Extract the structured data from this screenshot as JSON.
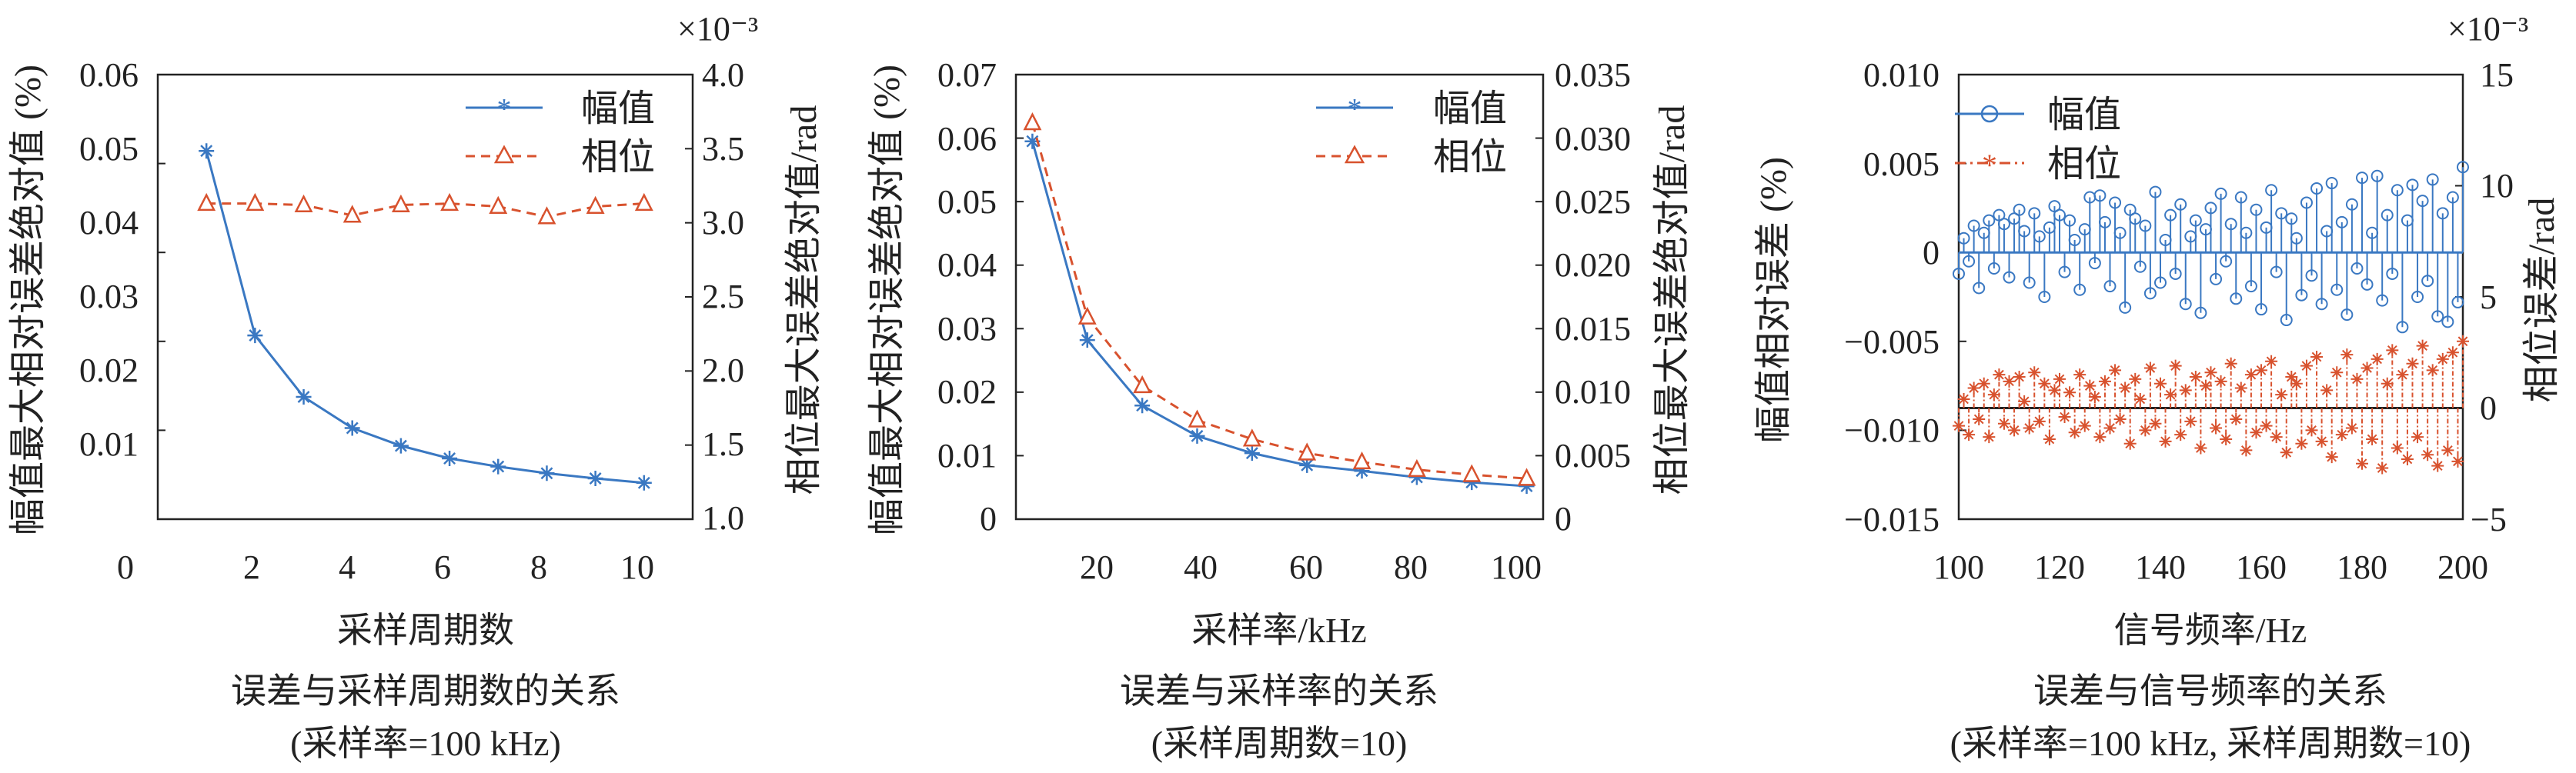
{
  "colors": {
    "blue": "#3a78c2",
    "red": "#d8522e",
    "axis": "#222222"
  },
  "chart_data": [
    {
      "type": "line",
      "xlabel": "采样周期数",
      "caption": "误差与采样周期数的关系",
      "subcaption": "(采样率=100 kHz)",
      "y1label": "幅值最大相对误差绝对值 (%)",
      "y2label": "相位最大误差绝对值/rad",
      "y2_exponent": "×10⁻³",
      "xlim": [
        0,
        11
      ],
      "xticks": [
        "0",
        "2",
        "4",
        "6",
        "8",
        "10"
      ],
      "y1lim": [
        0,
        0.06
      ],
      "y1ticks": [
        "0.06",
        "0.05",
        "0.04",
        "0.03",
        "0.02",
        "0.01"
      ],
      "y2lim": [
        1.0,
        4.0
      ],
      "y2ticks": [
        "4.0",
        "3.5",
        "3.0",
        "2.5",
        "2.0",
        "1.5",
        "1.0"
      ],
      "x": [
        1,
        2,
        3,
        4,
        5,
        6,
        7,
        8,
        9,
        10
      ],
      "series": [
        {
          "name": "幅值",
          "axis": "left",
          "marker": "star",
          "line": "solid",
          "color": "#3a78c2",
          "values": [
            0.0497,
            0.0248,
            0.0165,
            0.0123,
            0.0099,
            0.0082,
            0.0071,
            0.0062,
            0.0055,
            0.0049
          ]
        },
        {
          "name": "相位",
          "axis": "right",
          "marker": "triangle",
          "line": "dashed",
          "color": "#d8522e",
          "values": [
            3.13,
            3.13,
            3.12,
            3.05,
            3.12,
            3.13,
            3.11,
            3.04,
            3.11,
            3.13
          ]
        }
      ],
      "legend": "top-right"
    },
    {
      "type": "line",
      "xlabel": "采样率/kHz",
      "caption": "误差与采样率的关系",
      "subcaption": "(采样周期数=10)",
      "y1label": "幅值最大相对误差绝对值 (%)",
      "y2label": "相位最大误差绝对值/rad",
      "xlim": [
        7,
        103
      ],
      "xticks": [
        "20",
        "40",
        "60",
        "80",
        "100"
      ],
      "y1lim": [
        0,
        0.07
      ],
      "y1ticks": [
        "0.07",
        "0.06",
        "0.05",
        "0.04",
        "0.03",
        "0.02",
        "0.01",
        "0"
      ],
      "y2lim": [
        0,
        0.035
      ],
      "y2ticks": [
        "0.035",
        "0.030",
        "0.025",
        "0.020",
        "0.015",
        "0.010",
        "0.005",
        "0"
      ],
      "x": [
        10,
        20,
        30,
        40,
        50,
        60,
        70,
        80,
        90,
        100
      ],
      "series": [
        {
          "name": "幅值",
          "axis": "left",
          "marker": "star",
          "line": "solid",
          "color": "#3a78c2",
          "values": [
            0.0595,
            0.0282,
            0.0179,
            0.0131,
            0.0104,
            0.0085,
            0.0076,
            0.0066,
            0.0058,
            0.0052
          ]
        },
        {
          "name": "相位",
          "axis": "right",
          "marker": "triangle",
          "line": "dashed",
          "color": "#d8522e",
          "values": [
            0.0312,
            0.0159,
            0.0105,
            0.0078,
            0.0063,
            0.0052,
            0.0045,
            0.0039,
            0.0035,
            0.0032
          ]
        }
      ],
      "legend": "top-right"
    },
    {
      "type": "stem",
      "xlabel": "信号频率/Hz",
      "caption": "误差与信号频率的关系",
      "subcaption": "(采样率=100 kHz, 采样周期数=10)",
      "y1label": "幅值相对误差 (%)",
      "y2label": "相位误差/rad",
      "y2_exponent": "×10⁻³",
      "xlim": [
        100,
        200
      ],
      "xticks": [
        "100",
        "120",
        "140",
        "160",
        "180",
        "200"
      ],
      "y1lim": [
        -0.015,
        0.01
      ],
      "y1ticks": [
        "0.010",
        "0.005",
        "0",
        "−0.005",
        "−0.010",
        "−0.015"
      ],
      "y2lim": [
        -5,
        15
      ],
      "y2ticks": [
        "15",
        "10",
        "5",
        "0",
        "−5"
      ],
      "series": [
        {
          "name": "幅值",
          "axis": "left",
          "marker": "circle",
          "line": "solid",
          "color": "#3a78c2",
          "x": [
            100,
            101,
            102,
            103,
            104,
            105,
            106,
            107,
            108,
            109,
            110,
            111,
            112,
            113,
            114,
            115,
            116,
            117,
            118,
            119,
            120,
            121,
            122,
            123,
            124,
            125,
            126,
            127,
            128,
            129,
            130,
            131,
            132,
            133,
            134,
            135,
            136,
            137,
            138,
            139,
            140,
            141,
            142,
            143,
            144,
            145,
            146,
            147,
            148,
            149,
            150,
            151,
            152,
            153,
            154,
            155,
            156,
            157,
            158,
            159,
            160,
            161,
            162,
            163,
            164,
            165,
            166,
            167,
            168,
            169,
            170,
            171,
            172,
            173,
            174,
            175,
            176,
            177,
            178,
            179,
            180,
            181,
            182,
            183,
            184,
            185,
            186,
            187,
            188,
            189,
            190,
            191,
            192,
            193,
            194,
            195,
            196,
            197,
            198,
            199,
            200
          ],
          "values": [
            -0.0012,
            0.0008,
            -0.0005,
            0.0015,
            -0.002,
            0.0011,
            0.0018,
            -0.0009,
            0.0021,
            0.0016,
            -0.0014,
            0.0019,
            0.0024,
            0.0012,
            -0.0017,
            0.0022,
            0.0009,
            -0.0025,
            0.0014,
            0.0026,
            0.0021,
            -0.0011,
            0.0018,
            0.0007,
            -0.0021,
            0.0013,
            0.0031,
            -0.0006,
            0.0032,
            0.0017,
            -0.0019,
            0.0028,
            0.0011,
            -0.0031,
            0.0024,
            0.0019,
            -0.0008,
            0.0015,
            -0.0023,
            0.0034,
            -0.0017,
            0.0007,
            0.0021,
            -0.0012,
            0.0027,
            -0.0029,
            0.0009,
            0.0018,
            -0.0034,
            0.0013,
            0.0025,
            -0.0015,
            0.0033,
            -0.0005,
            0.0016,
            -0.0026,
            0.0031,
            0.0011,
            -0.0019,
            0.0024,
            -0.0032,
            0.0014,
            0.0035,
            -0.0011,
            0.0022,
            -0.0038,
            0.0019,
            0.0008,
            -0.0024,
            0.0028,
            -0.0013,
            0.0036,
            -0.0029,
            0.0012,
            0.0039,
            -0.0021,
            0.0017,
            -0.0035,
            0.0027,
            -0.0009,
            0.0042,
            -0.0018,
            0.0011,
            0.0043,
            -0.0027,
            0.0021,
            -0.0012,
            0.0035,
            -0.0042,
            0.0018,
            0.0038,
            -0.0025,
            0.0029,
            -0.0016,
            0.0041,
            -0.0036,
            0.0022,
            -0.0039,
            0.0031,
            -0.0028,
            0.0048
          ]
        },
        {
          "name": "相位",
          "axis": "right",
          "marker": "star",
          "line": "dashdot",
          "color": "#d8522e",
          "x": [
            100,
            101,
            102,
            103,
            104,
            105,
            106,
            107,
            108,
            109,
            110,
            111,
            112,
            113,
            114,
            115,
            116,
            117,
            118,
            119,
            120,
            121,
            122,
            123,
            124,
            125,
            126,
            127,
            128,
            129,
            130,
            131,
            132,
            133,
            134,
            135,
            136,
            137,
            138,
            139,
            140,
            141,
            142,
            143,
            144,
            145,
            146,
            147,
            148,
            149,
            150,
            151,
            152,
            153,
            154,
            155,
            156,
            157,
            158,
            159,
            160,
            161,
            162,
            163,
            164,
            165,
            166,
            167,
            168,
            169,
            170,
            171,
            172,
            173,
            174,
            175,
            176,
            177,
            178,
            179,
            180,
            181,
            182,
            183,
            184,
            185,
            186,
            187,
            188,
            189,
            190,
            191,
            192,
            193,
            194,
            195,
            196,
            197,
            198,
            199,
            200
          ],
          "values": [
            -0.8,
            0.4,
            -1.2,
            0.9,
            -0.5,
            1.1,
            -1.3,
            0.6,
            1.5,
            -0.7,
            1.2,
            -1.0,
            1.4,
            0.3,
            -0.9,
            1.6,
            -0.6,
            1.1,
            -1.4,
            0.8,
            1.3,
            -0.4,
            0.7,
            -1.1,
            1.5,
            -0.8,
            1.0,
            0.5,
            -1.3,
            1.2,
            -0.9,
            1.7,
            -0.5,
            0.9,
            -1.6,
            1.3,
            0.4,
            -1.0,
            1.8,
            -0.7,
            1.1,
            -1.5,
            0.6,
            1.9,
            -1.2,
            0.8,
            -0.6,
            1.4,
            -1.8,
            1.0,
            1.6,
            -0.9,
            1.2,
            -1.4,
            2.0,
            -0.5,
            0.9,
            -1.9,
            1.5,
            -1.1,
            1.7,
            -0.8,
            2.1,
            -1.3,
            0.6,
            -2.0,
            1.4,
            1.1,
            -1.6,
            1.9,
            -1.0,
            2.3,
            -1.5,
            0.8,
            -2.2,
            1.6,
            -1.2,
            2.4,
            -0.9,
            1.3,
            -2.5,
            1.8,
            -1.4,
            2.2,
            -2.7,
            1.1,
            2.6,
            -1.8,
            1.5,
            -2.3,
            2.0,
            -1.3,
            2.8,
            -2.1,
            1.7,
            -2.6,
            2.2,
            -1.9,
            2.5,
            -2.4,
            3.0
          ]
        }
      ],
      "legend": "top-left"
    }
  ]
}
